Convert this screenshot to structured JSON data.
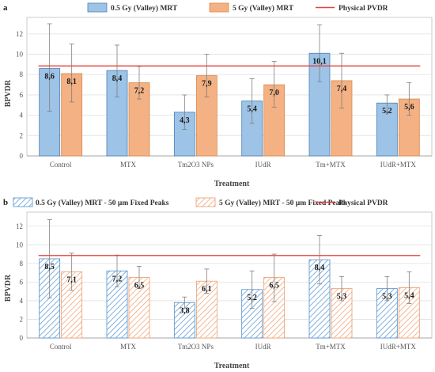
{
  "chart_data": [
    {
      "panel": "a",
      "type": "bar",
      "pattern": "solid",
      "categories": [
        "Control",
        "MTX",
        "Tm2O3 NPs",
        "IUdR",
        "Tm+MTX",
        "IUdR+MTX"
      ],
      "series": [
        {
          "name": "0.5 Gy (Valley) MRT",
          "color": "#9dc3e6",
          "stroke": "#4a7fb5",
          "values": [
            8.6,
            8.4,
            4.3,
            5.4,
            10.1,
            5.2
          ],
          "labels": [
            "8,6",
            "8,4",
            "4,3",
            "5,4",
            "10,1",
            "5,2"
          ],
          "err_high": [
            13.0,
            10.9,
            6.0,
            7.6,
            12.9,
            6.0
          ],
          "err_low": [
            4.4,
            5.8,
            2.6,
            3.2,
            7.3,
            4.4
          ]
        },
        {
          "name": "5 Gy (Valley) MRT",
          "color": "#f4b183",
          "stroke": "#d88a4f",
          "values": [
            8.1,
            7.2,
            7.9,
            7.0,
            7.4,
            5.6
          ],
          "labels": [
            "8,1",
            "7,2",
            "7,9",
            "7,0",
            "7,4",
            "5,6"
          ],
          "err_high": [
            11.0,
            8.8,
            10.0,
            9.3,
            10.1,
            7.2
          ],
          "err_low": [
            5.3,
            5.6,
            5.8,
            4.8,
            4.7,
            4.0
          ]
        }
      ],
      "reference_line": {
        "name": "Physical PVDR",
        "value": 8.85,
        "color": "#e8403a"
      },
      "xlabel": "Treatment",
      "ylabel": "BPVDR",
      "ylim": [
        0,
        13
      ],
      "yticks": [
        0,
        2,
        4,
        6,
        8,
        10,
        12
      ],
      "grid": true,
      "legend": "top"
    },
    {
      "panel": "b",
      "type": "bar",
      "pattern": "hatched",
      "categories": [
        "Control",
        "MTX",
        "Tm2O3 NPs",
        "IUdR",
        "Tm+MTX",
        "IUdR+MTX"
      ],
      "series": [
        {
          "name": "0.5 Gy (Valley) MRT - 50 µm Fixed Peaks",
          "color": "#4f8fcf",
          "stroke": "#4f8fcf",
          "values": [
            8.5,
            7.2,
            3.8,
            5.2,
            8.4,
            5.3
          ],
          "labels": [
            "8,5",
            "7,2",
            "3,8",
            "5,2",
            "8,4",
            "5,3"
          ],
          "err_high": [
            12.7,
            8.9,
            4.4,
            7.2,
            11.0,
            6.6
          ],
          "err_low": [
            4.3,
            5.5,
            3.2,
            3.2,
            5.8,
            4.0
          ]
        },
        {
          "name": "5 Gy (Valley) MRT - 50 µm Fixed Peaks",
          "color": "#ef9b6a",
          "stroke": "#ef9b6a",
          "values": [
            7.1,
            6.5,
            6.1,
            6.5,
            5.3,
            5.4
          ],
          "labels": [
            "7,1",
            "6,5",
            "6,1",
            "6,5",
            "5,3",
            "5,4"
          ],
          "err_high": [
            9.1,
            7.7,
            7.4,
            9.0,
            6.6,
            7.1
          ],
          "err_low": [
            5.1,
            5.3,
            4.8,
            3.9,
            4.0,
            3.7
          ]
        }
      ],
      "reference_line": {
        "name": "Physical PVDR",
        "value": 8.85,
        "color": "#e8403a"
      },
      "xlabel": "Treatment",
      "ylabel": "BPVDR",
      "ylim": [
        0,
        13
      ],
      "yticks": [
        0,
        2,
        4,
        6,
        8,
        10,
        12
      ],
      "grid": true,
      "legend": "top"
    }
  ]
}
